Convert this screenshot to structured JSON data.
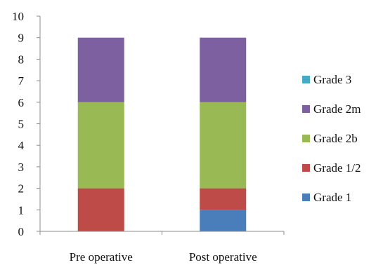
{
  "chart_data": {
    "type": "bar",
    "stacked": true,
    "categories": [
      "Pre operative",
      "Post operative"
    ],
    "series": [
      {
        "name": "Grade 1",
        "color": "#4a7ebb",
        "values": [
          0,
          1
        ]
      },
      {
        "name": "Grade 1/2",
        "color": "#be4b48",
        "values": [
          2,
          1
        ]
      },
      {
        "name": "Grade 2b",
        "color": "#98b954",
        "values": [
          4,
          4
        ]
      },
      {
        "name": "Grade 2m",
        "color": "#7d60a0",
        "values": [
          3,
          3
        ]
      },
      {
        "name": "Grade 3",
        "color": "#46aac5",
        "values": [
          0,
          0
        ]
      }
    ],
    "ylim": [
      0,
      10
    ],
    "yticks": [
      "0",
      "1",
      "2",
      "3",
      "4",
      "5",
      "6",
      "7",
      "8",
      "9",
      "10"
    ],
    "grid": false,
    "legend_position": "right"
  }
}
